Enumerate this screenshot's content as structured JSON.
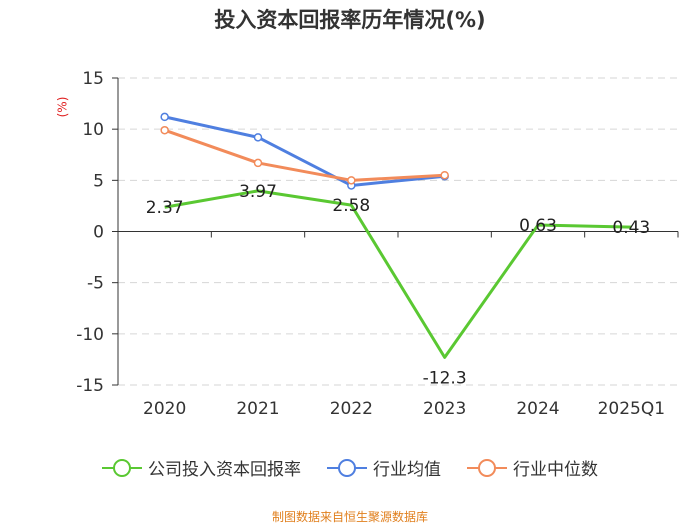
{
  "chart_data": {
    "type": "line",
    "title": "投入资本回报率历年情况(%)",
    "ylabel": "(%)",
    "xlabel": "",
    "categories": [
      "2020",
      "2021",
      "2022",
      "2023",
      "2024",
      "2025Q1"
    ],
    "ylim": [
      -15,
      15
    ],
    "yticks": [
      15,
      10,
      5,
      0,
      -5,
      -10,
      -15
    ],
    "grid": true,
    "legend_position": "bottom",
    "series": [
      {
        "name": "公司投入资本回报率",
        "color": "#5ac832",
        "values": [
          2.37,
          3.97,
          2.58,
          -12.3,
          0.63,
          0.43
        ],
        "labels": [
          "2.37",
          "3.97",
          "2.58",
          "-12.3",
          "0.63",
          "0.43"
        ]
      },
      {
        "name": "行业均值",
        "color": "#4f7fe0",
        "values": [
          11.2,
          9.2,
          4.5,
          5.4,
          null,
          null
        ]
      },
      {
        "name": "行业中位数",
        "color": "#f28b5a",
        "values": [
          9.9,
          6.7,
          5.0,
          5.5,
          null,
          null
        ]
      }
    ]
  },
  "footer": "制图数据来自恒生聚源数据库"
}
